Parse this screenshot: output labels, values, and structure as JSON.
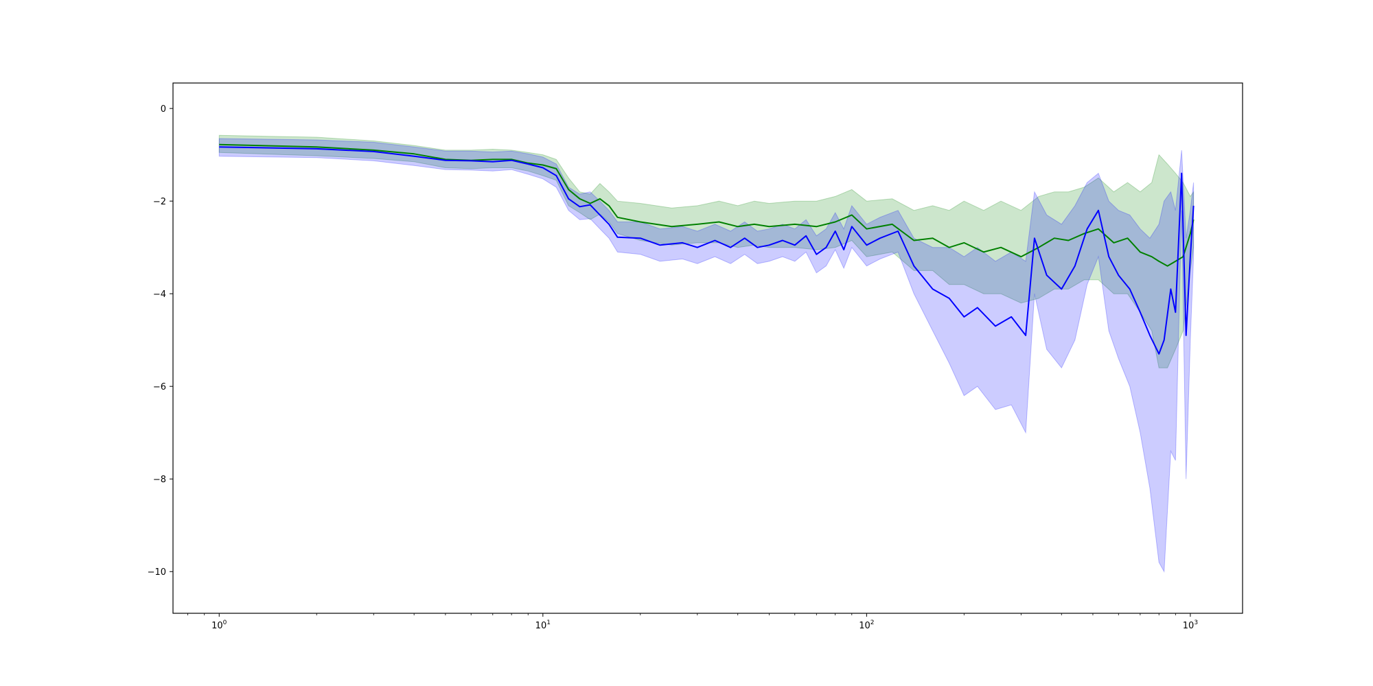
{
  "chart_data": {
    "type": "line",
    "title": "",
    "xlabel": "",
    "ylabel": "",
    "x_scale": "log",
    "xlim": [
      0.72,
      1450
    ],
    "ylim": [
      -10.9,
      0.55
    ],
    "grid": false,
    "legend": "none",
    "x_ticks": [
      {
        "base": "10",
        "exp": "0",
        "value": 1
      },
      {
        "base": "10",
        "exp": "1",
        "value": 10
      },
      {
        "base": "10",
        "exp": "2",
        "value": 100
      },
      {
        "base": "10",
        "exp": "3",
        "value": 1000
      }
    ],
    "y_ticks": [
      {
        "label": "0",
        "value": 0
      },
      {
        "label": "−2",
        "value": -2
      },
      {
        "label": "−4",
        "value": -4
      },
      {
        "label": "−6",
        "value": -6
      },
      {
        "label": "−8",
        "value": -8
      },
      {
        "label": "−10",
        "value": -10
      }
    ],
    "series": [
      {
        "color": "#008000",
        "band_color": "#008000",
        "points": [
          [
            1,
            -0.78,
            -0.58,
            -0.95
          ],
          [
            2,
            -0.83,
            -0.62,
            -1.02
          ],
          [
            3,
            -0.9,
            -0.7,
            -1.08
          ],
          [
            4,
            -0.98,
            -0.8,
            -1.15
          ],
          [
            5,
            -1.1,
            -0.9,
            -1.28
          ],
          [
            6,
            -1.12,
            -0.9,
            -1.3
          ],
          [
            7,
            -1.1,
            -0.88,
            -1.28
          ],
          [
            8,
            -1.1,
            -0.9,
            -1.28
          ],
          [
            9,
            -1.18,
            -0.95,
            -1.35
          ],
          [
            10,
            -1.22,
            -1.0,
            -1.45
          ],
          [
            11,
            -1.3,
            -1.1,
            -1.55
          ],
          [
            12,
            -1.75,
            -1.5,
            -2.1
          ],
          [
            13,
            -1.95,
            -1.8,
            -2.25
          ],
          [
            14,
            -2.05,
            -1.85,
            -2.4
          ],
          [
            15,
            -1.95,
            -1.62,
            -2.28
          ],
          [
            16,
            -2.1,
            -1.8,
            -2.45
          ],
          [
            17,
            -2.35,
            -2.0,
            -2.7
          ],
          [
            20,
            -2.45,
            -2.05,
            -2.85
          ],
          [
            25,
            -2.55,
            -2.15,
            -2.95
          ],
          [
            30,
            -2.5,
            -2.1,
            -2.9
          ],
          [
            35,
            -2.45,
            -2.0,
            -2.9
          ],
          [
            40,
            -2.55,
            -2.1,
            -3.0
          ],
          [
            45,
            -2.5,
            -2.0,
            -2.95
          ],
          [
            50,
            -2.55,
            -2.05,
            -3.0
          ],
          [
            60,
            -2.5,
            -2.0,
            -3.0
          ],
          [
            70,
            -2.55,
            -2.0,
            -3.05
          ],
          [
            80,
            -2.45,
            -1.9,
            -3.0
          ],
          [
            90,
            -2.3,
            -1.75,
            -2.85
          ],
          [
            100,
            -2.6,
            -2.0,
            -3.2
          ],
          [
            120,
            -2.5,
            -1.95,
            -3.1
          ],
          [
            140,
            -2.85,
            -2.2,
            -3.5
          ],
          [
            160,
            -2.8,
            -2.1,
            -3.5
          ],
          [
            180,
            -3.0,
            -2.2,
            -3.8
          ],
          [
            200,
            -2.9,
            -2.0,
            -3.8
          ],
          [
            230,
            -3.1,
            -2.2,
            -4.0
          ],
          [
            260,
            -3.0,
            -2.0,
            -4.0
          ],
          [
            300,
            -3.2,
            -2.2,
            -4.2
          ],
          [
            340,
            -3.0,
            -1.9,
            -4.1
          ],
          [
            380,
            -2.8,
            -1.8,
            -3.9
          ],
          [
            420,
            -2.85,
            -1.8,
            -3.9
          ],
          [
            470,
            -2.7,
            -1.7,
            -3.7
          ],
          [
            520,
            -2.6,
            -1.5,
            -3.7
          ],
          [
            580,
            -2.9,
            -1.8,
            -4.0
          ],
          [
            640,
            -2.8,
            -1.6,
            -4.0
          ],
          [
            700,
            -3.1,
            -1.8,
            -4.4
          ],
          [
            760,
            -3.2,
            -1.6,
            -4.8
          ],
          [
            800,
            -3.3,
            -1.0,
            -5.6
          ],
          [
            850,
            -3.4,
            -1.2,
            -5.6
          ],
          [
            900,
            -3.3,
            -1.4,
            -5.2
          ],
          [
            950,
            -3.2,
            -1.6,
            -4.8
          ],
          [
            1000,
            -2.7,
            -1.9,
            -3.5
          ],
          [
            1023,
            -2.4,
            -1.8,
            -3.0
          ]
        ]
      },
      {
        "color": "#0000ff",
        "band_color": "#0000ff",
        "points": [
          [
            1,
            -0.83,
            -0.65,
            -1.03
          ],
          [
            2,
            -0.87,
            -0.68,
            -1.06
          ],
          [
            3,
            -0.93,
            -0.73,
            -1.13
          ],
          [
            4,
            -1.03,
            -0.83,
            -1.23
          ],
          [
            5,
            -1.12,
            -0.92,
            -1.32
          ],
          [
            6,
            -1.13,
            -0.92,
            -1.33
          ],
          [
            7,
            -1.15,
            -0.94,
            -1.35
          ],
          [
            8,
            -1.12,
            -0.92,
            -1.32
          ],
          [
            9,
            -1.2,
            -0.98,
            -1.42
          ],
          [
            10,
            -1.28,
            -1.05,
            -1.52
          ],
          [
            11,
            -1.45,
            -1.2,
            -1.7
          ],
          [
            12,
            -1.95,
            -1.7,
            -2.2
          ],
          [
            13,
            -2.12,
            -1.85,
            -2.4
          ],
          [
            14,
            -2.08,
            -1.8,
            -2.38
          ],
          [
            15,
            -2.3,
            -2.0,
            -2.6
          ],
          [
            16,
            -2.5,
            -2.2,
            -2.8
          ],
          [
            17,
            -2.78,
            -2.45,
            -3.1
          ],
          [
            20,
            -2.8,
            -2.45,
            -3.15
          ],
          [
            23,
            -2.95,
            -2.6,
            -3.3
          ],
          [
            27,
            -2.9,
            -2.55,
            -3.25
          ],
          [
            30,
            -3.0,
            -2.65,
            -3.35
          ],
          [
            34,
            -2.85,
            -2.5,
            -3.2
          ],
          [
            38,
            -3.0,
            -2.65,
            -3.35
          ],
          [
            42,
            -2.8,
            -2.45,
            -3.15
          ],
          [
            46,
            -3.0,
            -2.65,
            -3.35
          ],
          [
            50,
            -2.95,
            -2.6,
            -3.3
          ],
          [
            55,
            -2.85,
            -2.5,
            -3.2
          ],
          [
            60,
            -2.95,
            -2.6,
            -3.3
          ],
          [
            65,
            -2.75,
            -2.4,
            -3.1
          ],
          [
            70,
            -3.15,
            -2.75,
            -3.55
          ],
          [
            75,
            -3.0,
            -2.6,
            -3.4
          ],
          [
            80,
            -2.65,
            -2.25,
            -3.05
          ],
          [
            85,
            -3.05,
            -2.6,
            -3.45
          ],
          [
            90,
            -2.55,
            -2.1,
            -3.0
          ],
          [
            100,
            -2.95,
            -2.5,
            -3.4
          ],
          [
            110,
            -2.8,
            -2.35,
            -3.25
          ],
          [
            125,
            -2.65,
            -2.2,
            -3.1
          ],
          [
            140,
            -3.4,
            -2.8,
            -4.0
          ],
          [
            160,
            -3.9,
            -3.0,
            -4.8
          ],
          [
            180,
            -4.1,
            -3.0,
            -5.5
          ],
          [
            200,
            -4.5,
            -3.2,
            -6.2
          ],
          [
            220,
            -4.3,
            -3.0,
            -6.0
          ],
          [
            250,
            -4.7,
            -3.3,
            -6.5
          ],
          [
            280,
            -4.5,
            -3.1,
            -6.4
          ],
          [
            310,
            -4.9,
            -3.3,
            -7.0
          ],
          [
            330,
            -2.8,
            -1.8,
            -4.0
          ],
          [
            360,
            -3.6,
            -2.3,
            -5.2
          ],
          [
            400,
            -3.9,
            -2.5,
            -5.6
          ],
          [
            440,
            -3.4,
            -2.1,
            -5.0
          ],
          [
            480,
            -2.6,
            -1.6,
            -3.8
          ],
          [
            520,
            -2.2,
            -1.4,
            -3.2
          ],
          [
            560,
            -3.2,
            -2.0,
            -4.8
          ],
          [
            600,
            -3.6,
            -2.2,
            -5.4
          ],
          [
            650,
            -3.9,
            -2.3,
            -6.0
          ],
          [
            700,
            -4.4,
            -2.6,
            -7.0
          ],
          [
            750,
            -4.9,
            -2.8,
            -8.2
          ],
          [
            800,
            -5.3,
            -2.5,
            -9.8
          ],
          [
            830,
            -5.0,
            -2.0,
            -10.0
          ],
          [
            870,
            -3.9,
            -1.8,
            -7.4
          ],
          [
            900,
            -4.4,
            -2.2,
            -7.6
          ],
          [
            940,
            -1.4,
            -0.9,
            -2.2
          ],
          [
            970,
            -4.9,
            -2.8,
            -8.0
          ],
          [
            1000,
            -3.2,
            -2.2,
            -5.0
          ],
          [
            1023,
            -2.1,
            -1.6,
            -3.2
          ]
        ]
      }
    ]
  }
}
